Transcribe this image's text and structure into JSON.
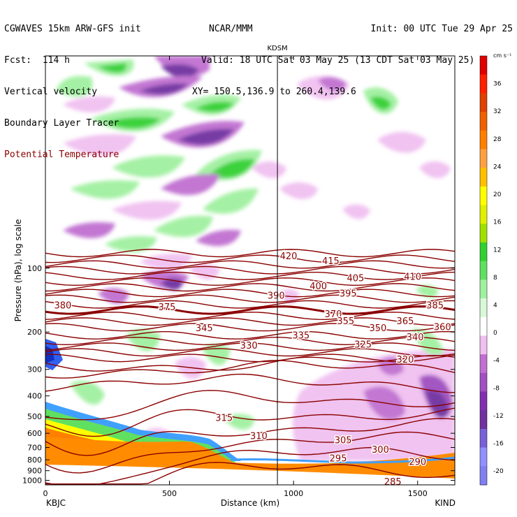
{
  "header": {
    "left": [
      "CGWAVES 15km ARW-GFS init",
      "Fcst:  114 h",
      "Vertical velocity",
      "Boundary Layer Tracer",
      "Potential Temperature"
    ],
    "center": [
      "NCAR/MMM",
      "Valid: 18 UTC Sat 03 May 25 (13 CDT Sat 03 May 25)",
      "XY= 150.5,136.9 to 260.4,139.6"
    ],
    "right": [
      "Init: 00 UTC Tue 29 Apr 25"
    ],
    "colors": {
      "potential_temperature": "#8b0000",
      "text": "#000000"
    }
  },
  "chart_data": {
    "type": "heatmap",
    "title": "",
    "xlabel": "Distance (km)",
    "ylabel": "Pressure (hPa), log scale",
    "xlim": [
      0,
      1650
    ],
    "ylim": [
      1050,
      10
    ],
    "log_y": true,
    "x_ticks": [
      0,
      500,
      1000,
      1500
    ],
    "y_ticks": [
      100,
      200,
      300,
      400,
      500,
      600,
      700,
      800,
      900,
      1000
    ],
    "left_station": "KBJC",
    "right_station": "KIND",
    "marker": {
      "label": "KDSM",
      "x": 935
    },
    "colorbar": {
      "unit": "cm s⁻¹",
      "levels": [
        -20,
        -16,
        -12,
        -8,
        -4,
        0,
        4,
        8,
        12,
        16,
        20,
        24,
        28,
        32,
        36
      ],
      "colors": [
        "#8080f0",
        "#9090ff",
        "#7860d8",
        "#7030a0",
        "#8030b0",
        "#a050c0",
        "#c070d0",
        "#f0c0f0",
        "#ffffff",
        "#d8f8d8",
        "#a0f0a0",
        "#60e060",
        "#30d030",
        "#a0e000",
        "#e0f000",
        "#ffff00",
        "#ffc000",
        "#ffa040",
        "#ff8000",
        "#f06000",
        "#e04000",
        "#ff2000",
        "#e00000"
      ]
    },
    "theta_levels": [
      420,
      415,
      410,
      405,
      400,
      395,
      390,
      385,
      380,
      375,
      370,
      365,
      360,
      355,
      350,
      345,
      340,
      335,
      330,
      325,
      320,
      315,
      310,
      305,
      300,
      295,
      290,
      285
    ],
    "theta_labels": [
      {
        "v": "420",
        "x": 980,
        "p": 88
      },
      {
        "v": "415",
        "x": 1150,
        "p": 93
      },
      {
        "v": "410",
        "x": 1480,
        "p": 110
      },
      {
        "v": "405",
        "x": 1250,
        "p": 112
      },
      {
        "v": "400",
        "x": 1100,
        "p": 122
      },
      {
        "v": "395",
        "x": 1220,
        "p": 132
      },
      {
        "v": "390",
        "x": 930,
        "p": 135
      },
      {
        "v": "385",
        "x": 1570,
        "p": 150
      },
      {
        "v": "380",
        "x": 70,
        "p": 150
      },
      {
        "v": "375",
        "x": 490,
        "p": 153
      },
      {
        "v": "370",
        "x": 1160,
        "p": 165
      },
      {
        "v": "365",
        "x": 1450,
        "p": 178
      },
      {
        "v": "360",
        "x": 1600,
        "p": 190
      },
      {
        "v": "355",
        "x": 1210,
        "p": 178
      },
      {
        "v": "350",
        "x": 1340,
        "p": 192
      },
      {
        "v": "345",
        "x": 640,
        "p": 192
      },
      {
        "v": "340",
        "x": 1490,
        "p": 212
      },
      {
        "v": "335",
        "x": 1030,
        "p": 208
      },
      {
        "v": "330",
        "x": 820,
        "p": 232
      },
      {
        "v": "325",
        "x": 1280,
        "p": 230
      },
      {
        "v": "320",
        "x": 1450,
        "p": 270
      },
      {
        "v": "315",
        "x": 720,
        "p": 510
      },
      {
        "v": "310",
        "x": 860,
        "p": 620
      },
      {
        "v": "305",
        "x": 1200,
        "p": 650
      },
      {
        "v": "300",
        "x": 1350,
        "p": 720
      },
      {
        "v": "295",
        "x": 1180,
        "p": 790
      },
      {
        "v": "290",
        "x": 1500,
        "p": 820
      },
      {
        "v": "285",
        "x": 1400,
        "p": 1020
      }
    ]
  }
}
